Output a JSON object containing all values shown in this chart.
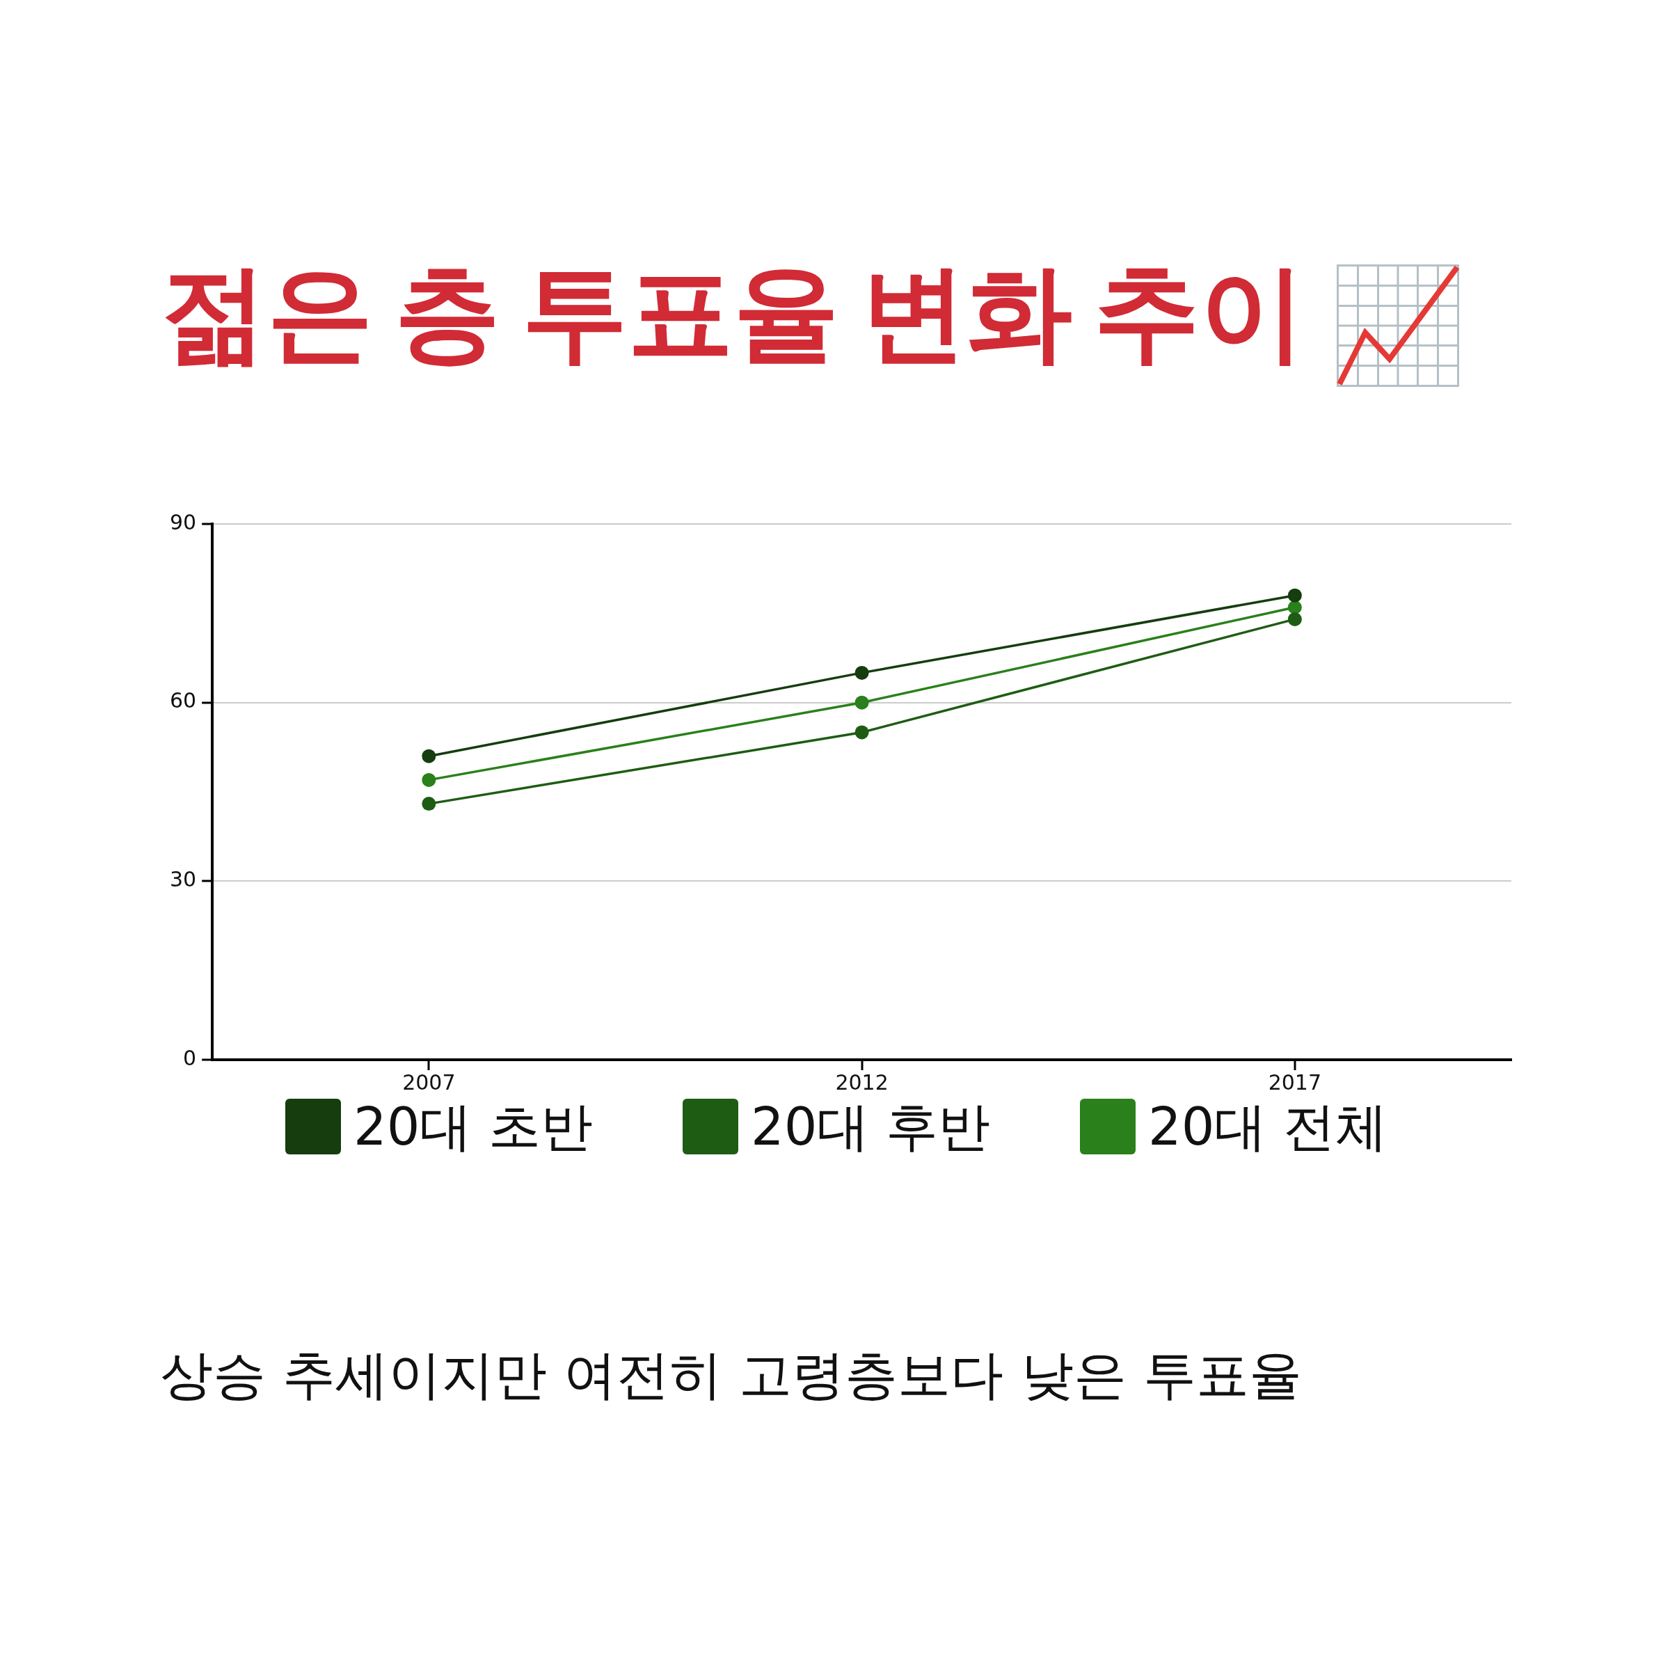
{
  "chart_data": {
    "type": "line",
    "title": "젊은 층 투표율 변화 추이",
    "categories": [
      "2007",
      "2012",
      "2017"
    ],
    "series": [
      {
        "name": "20대 초반",
        "color": "#153d0e",
        "values": [
          51,
          65,
          78
        ]
      },
      {
        "name": "20대 후반",
        "color": "#1e5c14",
        "values": [
          43,
          55,
          74
        ]
      },
      {
        "name": "20대 전체",
        "color": "#2a801b",
        "values": [
          47,
          60,
          76
        ]
      }
    ],
    "ylim": [
      0,
      90
    ],
    "yticks": [
      0,
      30,
      60,
      90
    ],
    "grid": "y",
    "legend": "bottom",
    "marker": "circle",
    "line_style": "solid",
    "annotations": [
      "상승 추세이지만 여전히 고령층보다 낮은 투표율"
    ]
  }
}
